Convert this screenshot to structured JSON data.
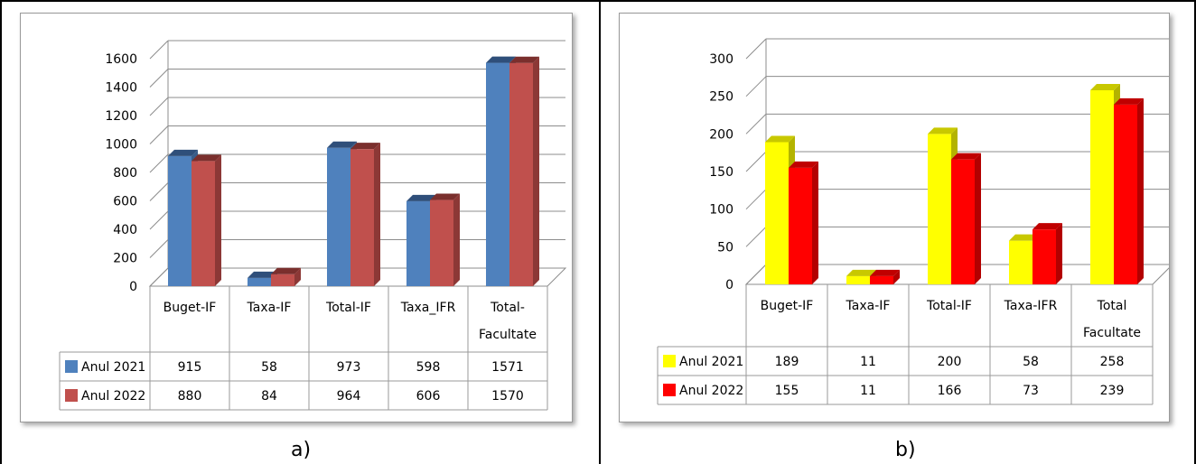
{
  "panels": [
    {
      "caption": "a)",
      "chart_data": {
        "type": "bar",
        "variant": "3d-clustered-with-data-table",
        "categories": [
          "Buget-IF",
          "Taxa-IF",
          "Total-IF",
          "Taxa_IFR",
          "Total-Facultate"
        ],
        "category_lines": [
          [
            "Buget-IF"
          ],
          [
            "Taxa-IF"
          ],
          [
            "Total-IF"
          ],
          [
            "Taxa_IFR"
          ],
          [
            "Total-",
            "Facultate"
          ]
        ],
        "series": [
          {
            "name": "Anul 2021",
            "values": [
              915,
              58,
              973,
              598,
              1571
            ],
            "color": "#4F81BD",
            "side": "#385D8A",
            "top": "#2F4F7A"
          },
          {
            "name": "Anul 2022",
            "values": [
              880,
              84,
              964,
              606,
              1570
            ],
            "color": "#C0504D",
            "side": "#8C3836",
            "top": "#7A2F2D"
          }
        ],
        "ylim": [
          0,
          1600
        ],
        "yticks": [
          "0",
          "200",
          "400",
          "600",
          "800",
          "1000",
          "1200",
          "1400",
          "1600"
        ],
        "grid": true,
        "legend": "data-table"
      }
    },
    {
      "caption": "b)",
      "chart_data": {
        "type": "bar",
        "variant": "3d-clustered-with-data-table",
        "categories": [
          "Buget-IF",
          "Taxa-IF",
          "Total-IF",
          "Taxa-IFR",
          "Total Facultate"
        ],
        "category_lines": [
          [
            "Buget-IF"
          ],
          [
            "Taxa-IF"
          ],
          [
            "Total-IF"
          ],
          [
            "Taxa-IFR"
          ],
          [
            "Total",
            "Facultate"
          ]
        ],
        "series": [
          {
            "name": "Anul 2021",
            "values": [
              189,
              11,
              200,
              58,
              258
            ],
            "color": "#FFFF00",
            "side": "#B3B300",
            "top": "#C8C800"
          },
          {
            "name": "Anul 2022",
            "values": [
              155,
              11,
              166,
              73,
              239
            ],
            "color": "#FF0000",
            "side": "#B30000",
            "top": "#C00000"
          }
        ],
        "ylim": [
          0,
          300
        ],
        "yticks": [
          "0",
          "50",
          "100",
          "150",
          "200",
          "250",
          "300"
        ],
        "grid": true,
        "legend": "data-table"
      }
    }
  ]
}
